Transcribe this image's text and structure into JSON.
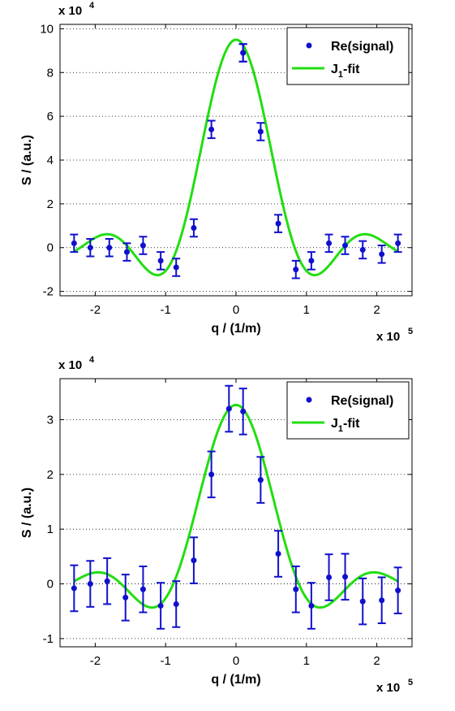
{
  "chart_data": [
    {
      "type": "scatter",
      "xlabel": "q / (1/m)",
      "ylabel": "S / (a.u.)",
      "x_multiplier": "x 10",
      "x_multiplier_exp": "5",
      "y_multiplier": "x 10",
      "y_multiplier_exp": "4",
      "xlim": [
        -2.5,
        2.5
      ],
      "ylim": [
        -2.2,
        10.2
      ],
      "xticks": [
        -2,
        -1,
        0,
        1,
        2
      ],
      "yticks": [
        -2,
        0,
        2,
        4,
        6,
        8,
        10
      ],
      "grid": "y-dotted",
      "legend_position": "top-right",
      "legend": {
        "points_label": "Re(signal)",
        "line_label_main": "J",
        "line_label_sub": "1",
        "line_label_tail": "-fit"
      },
      "colors": {
        "points": "#1010cc",
        "fit": "#22dd11"
      },
      "series": [
        {
          "name": "Re(signal)",
          "x": [
            -2.3,
            -2.07,
            -1.8,
            -1.55,
            -1.32,
            -1.07,
            -0.85,
            -0.6,
            -0.35,
            0.1,
            0.1,
            0.35,
            0.6,
            0.85,
            1.07,
            1.32,
            1.55,
            1.8,
            2.07,
            2.3
          ],
          "y": [
            0.2,
            0.0,
            0.0,
            -0.2,
            0.1,
            -0.6,
            -0.9,
            0.9,
            5.4,
            8.9,
            8.9,
            5.3,
            1.1,
            -1.0,
            -0.6,
            0.2,
            0.1,
            -0.1,
            -0.3,
            0.2
          ],
          "yerr": [
            0.4,
            0.4,
            0.4,
            0.4,
            0.4,
            0.4,
            0.4,
            0.4,
            0.4,
            0.4,
            0.4,
            0.4,
            0.4,
            0.4,
            0.4,
            0.4,
            0.4,
            0.4,
            0.4,
            0.4
          ]
        },
        {
          "name": "J1-fit",
          "amplitude": 9.5,
          "scale": 4.6,
          "x_range": [
            -2.3,
            2.3
          ]
        }
      ]
    },
    {
      "type": "scatter",
      "xlabel": "q / (1/m)",
      "ylabel": "S / (a.u.)",
      "x_multiplier": "x 10",
      "x_multiplier_exp": "5",
      "y_multiplier": "x 10",
      "y_multiplier_exp": "4",
      "xlim": [
        -2.5,
        2.5
      ],
      "ylim": [
        -1.15,
        3.75
      ],
      "xticks": [
        -2,
        -1,
        0,
        1,
        2
      ],
      "yticks": [
        -1,
        0,
        1,
        2,
        3
      ],
      "grid": "y-dotted",
      "legend_position": "top-right",
      "legend": {
        "points_label": "Re(signal)",
        "line_label_main": "J",
        "line_label_sub": "1",
        "line_label_tail": "-fit"
      },
      "colors": {
        "points": "#1010cc",
        "fit": "#22dd11"
      },
      "series": [
        {
          "name": "Re(signal)",
          "x": [
            -2.3,
            -2.07,
            -1.83,
            -1.57,
            -1.32,
            -1.07,
            -0.85,
            -0.6,
            -0.35,
            -0.1,
            0.1,
            0.35,
            0.6,
            0.85,
            1.07,
            1.32,
            1.55,
            1.8,
            2.07,
            2.3
          ],
          "y": [
            -0.08,
            0.0,
            0.05,
            -0.25,
            -0.1,
            -0.4,
            -0.37,
            0.43,
            2.0,
            3.2,
            3.15,
            1.9,
            0.55,
            -0.1,
            -0.4,
            0.12,
            0.13,
            -0.32,
            -0.3,
            -0.12
          ],
          "yerr": [
            0.42,
            0.42,
            0.42,
            0.42,
            0.42,
            0.42,
            0.42,
            0.42,
            0.42,
            0.42,
            0.42,
            0.42,
            0.42,
            0.42,
            0.42,
            0.42,
            0.42,
            0.42,
            0.42,
            0.42
          ]
        },
        {
          "name": "J1-fit",
          "amplitude": 3.27,
          "scale": 4.3,
          "x_range": [
            -2.3,
            2.3
          ]
        }
      ]
    }
  ]
}
